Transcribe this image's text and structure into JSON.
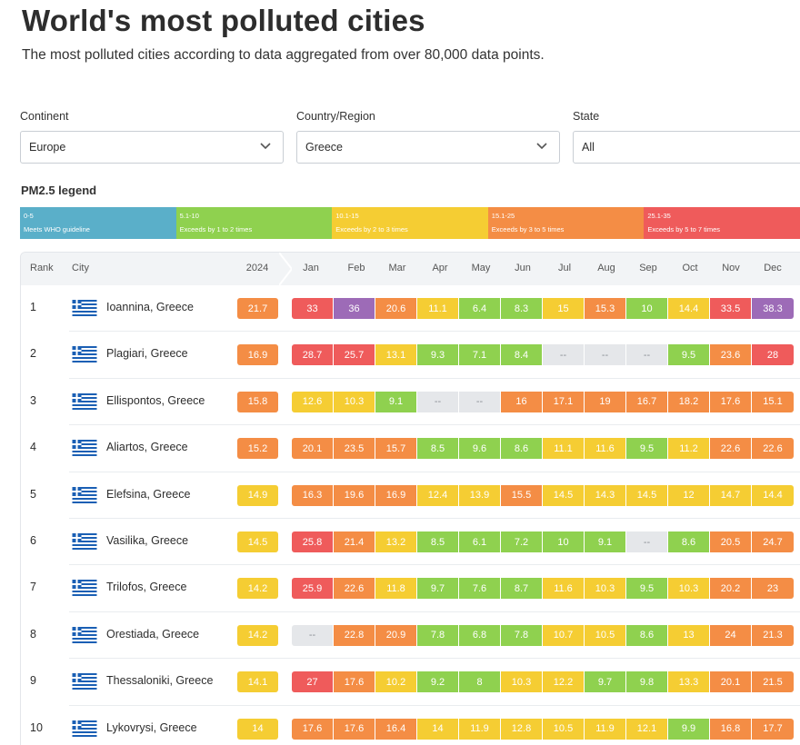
{
  "header": {
    "title": "World's most polluted cities",
    "subtitle": "The most polluted cities according to data aggregated from over 80,000 data points."
  },
  "filters": {
    "continent": {
      "label": "Continent",
      "value": "Europe"
    },
    "country": {
      "label": "Country/Region",
      "value": "Greece"
    },
    "state": {
      "label": "State",
      "value": "All"
    }
  },
  "legend": {
    "title": "PM2.5 legend",
    "items": [
      {
        "range": "0-5",
        "desc": "Meets WHO guideline",
        "color": "#5aafc9"
      },
      {
        "range": "5.1-10",
        "desc": "Exceeds by 1 to 2 times",
        "color": "#8fd14f"
      },
      {
        "range": "10.1-15",
        "desc": "Exceeds by 2 to 3 times",
        "color": "#f5cd33"
      },
      {
        "range": "15.1-25",
        "desc": "Exceeds by 3 to 5 times",
        "color": "#f48d45"
      },
      {
        "range": "25.1-35",
        "desc": "Exceeds by 5 to 7 times",
        "color": "#ef5b5b"
      }
    ]
  },
  "colors": {
    "none": "#e5e7ea",
    "good": "#8fd14f",
    "moderate": "#f5cd33",
    "sensitive": "#f48d45",
    "unhealthy": "#ef5b5b",
    "very_unhealthy": "#9d6bb7",
    "flag_blue": "#1a5fb4"
  },
  "table": {
    "headers": {
      "rank": "Rank",
      "city": "City",
      "year": "2024",
      "months": [
        "Jan",
        "Feb",
        "Mar",
        "Apr",
        "May",
        "Jun",
        "Jul",
        "Aug",
        "Sep",
        "Oct",
        "Nov",
        "Dec"
      ]
    },
    "rows": [
      {
        "rank": "1",
        "city": "Ioannina, Greece",
        "year": "21.7",
        "months": [
          "33",
          "36",
          "20.6",
          "11.1",
          "6.4",
          "8.3",
          "15",
          "15.3",
          "10",
          "14.4",
          "33.5",
          "38.3"
        ]
      },
      {
        "rank": "2",
        "city": "Plagiari, Greece",
        "year": "16.9",
        "months": [
          "28.7",
          "25.7",
          "13.1",
          "9.3",
          "7.1",
          "8.4",
          "--",
          "--",
          "--",
          "9.5",
          "23.6",
          "28"
        ]
      },
      {
        "rank": "3",
        "city": "Ellispontos, Greece",
        "year": "15.8",
        "months": [
          "12.6",
          "10.3",
          "9.1",
          "--",
          "--",
          "16",
          "17.1",
          "19",
          "16.7",
          "18.2",
          "17.6",
          "15.1"
        ]
      },
      {
        "rank": "4",
        "city": "Aliartos, Greece",
        "year": "15.2",
        "months": [
          "20.1",
          "23.5",
          "15.7",
          "8.5",
          "9.6",
          "8.6",
          "11.1",
          "11.6",
          "9.5",
          "11.2",
          "22.6",
          "22.6"
        ]
      },
      {
        "rank": "5",
        "city": "Elefsina, Greece",
        "year": "14.9",
        "months": [
          "16.3",
          "19.6",
          "16.9",
          "12.4",
          "13.9",
          "15.5",
          "14.5",
          "14.3",
          "14.5",
          "12",
          "14.7",
          "14.4"
        ]
      },
      {
        "rank": "6",
        "city": "Vasilika, Greece",
        "year": "14.5",
        "months": [
          "25.8",
          "21.4",
          "13.2",
          "8.5",
          "6.1",
          "7.2",
          "10",
          "9.1",
          "--",
          "8.6",
          "20.5",
          "24.7"
        ]
      },
      {
        "rank": "7",
        "city": "Trilofos, Greece",
        "year": "14.2",
        "months": [
          "25.9",
          "22.6",
          "11.8",
          "9.7",
          "7.6",
          "8.7",
          "11.6",
          "10.3",
          "9.5",
          "10.3",
          "20.2",
          "23"
        ]
      },
      {
        "rank": "8",
        "city": "Orestiada, Greece",
        "year": "14.2",
        "months": [
          "--",
          "22.8",
          "20.9",
          "7.8",
          "6.8",
          "7.8",
          "10.7",
          "10.5",
          "8.6",
          "13",
          "24",
          "21.3"
        ]
      },
      {
        "rank": "9",
        "city": "Thessaloniki, Greece",
        "year": "14.1",
        "months": [
          "27",
          "17.6",
          "10.2",
          "9.2",
          "8",
          "10.3",
          "12.2",
          "9.7",
          "9.8",
          "13.3",
          "20.1",
          "21.5"
        ]
      },
      {
        "rank": "10",
        "city": "Lykovrysi, Greece",
        "year": "14",
        "months": [
          "17.6",
          "17.6",
          "16.4",
          "14",
          "11.9",
          "12.8",
          "10.5",
          "11.9",
          "12.1",
          "9.9",
          "16.8",
          "17.7"
        ]
      }
    ]
  }
}
